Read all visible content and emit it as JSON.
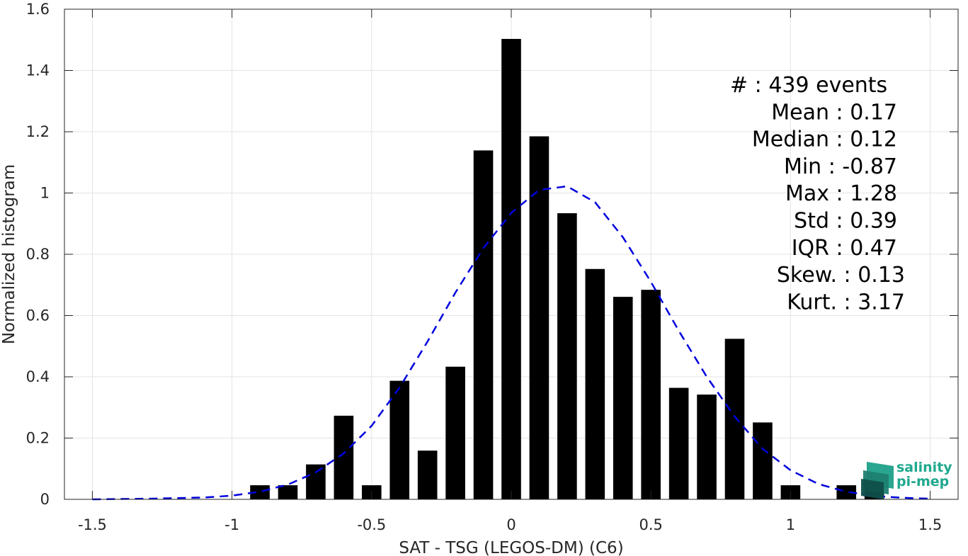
{
  "chart_data": {
    "type": "bar",
    "xlabel": "SAT - TSG (LEGOS-DM) (C6)",
    "ylabel": "Normalized histogram",
    "xlim": [
      -1.6,
      1.6
    ],
    "ylim": [
      0,
      1.6
    ],
    "xticks": [
      -1.5,
      -1,
      -0.5,
      0,
      0.5,
      1,
      1.5
    ],
    "xtick_labels": [
      "-1.5",
      "-1",
      "-0.5",
      "0",
      "0.5",
      "1",
      "1.5"
    ],
    "yticks": [
      0,
      0.2,
      0.4,
      0.6,
      0.8,
      1,
      1.2,
      1.4,
      1.6
    ],
    "ytick_labels": [
      "0",
      "0.2",
      "0.4",
      "0.6",
      "0.8",
      "1",
      "1.2",
      "1.4",
      "1.6"
    ],
    "grid": true,
    "bar_width": 0.07,
    "bar_color": "#000000",
    "bars": [
      {
        "x": -0.9,
        "y": 0.046
      },
      {
        "x": -0.8,
        "y": 0.046
      },
      {
        "x": -0.7,
        "y": 0.114
      },
      {
        "x": -0.6,
        "y": 0.273
      },
      {
        "x": -0.5,
        "y": 0.046
      },
      {
        "x": -0.4,
        "y": 0.387
      },
      {
        "x": -0.3,
        "y": 0.159
      },
      {
        "x": -0.2,
        "y": 0.433
      },
      {
        "x": -0.1,
        "y": 1.139
      },
      {
        "x": 0.0,
        "y": 1.503
      },
      {
        "x": 0.1,
        "y": 1.185
      },
      {
        "x": 0.2,
        "y": 0.934
      },
      {
        "x": 0.3,
        "y": 0.752
      },
      {
        "x": 0.4,
        "y": 0.661
      },
      {
        "x": 0.5,
        "y": 0.684
      },
      {
        "x": 0.6,
        "y": 0.364
      },
      {
        "x": 0.7,
        "y": 0.342
      },
      {
        "x": 0.8,
        "y": 0.524
      },
      {
        "x": 0.9,
        "y": 0.251
      },
      {
        "x": 1.0,
        "y": 0.046
      },
      {
        "x": 1.2,
        "y": 0.046
      },
      {
        "x": 1.3,
        "y": 0.068
      }
    ],
    "fit_curve": {
      "style": "dashed",
      "color": "#0000dd",
      "points": [
        [
          -1.5,
          0.0
        ],
        [
          -1.3,
          0.002
        ],
        [
          -1.1,
          0.006
        ],
        [
          -1.0,
          0.012
        ],
        [
          -0.9,
          0.025
        ],
        [
          -0.8,
          0.048
        ],
        [
          -0.7,
          0.088
        ],
        [
          -0.6,
          0.15
        ],
        [
          -0.5,
          0.24
        ],
        [
          -0.4,
          0.365
        ],
        [
          -0.3,
          0.515
        ],
        [
          -0.2,
          0.675
        ],
        [
          -0.1,
          0.82
        ],
        [
          0.0,
          0.935
        ],
        [
          0.1,
          1.01
        ],
        [
          0.2,
          1.022
        ],
        [
          0.3,
          0.97
        ],
        [
          0.4,
          0.855
        ],
        [
          0.5,
          0.71
        ],
        [
          0.6,
          0.55
        ],
        [
          0.7,
          0.4
        ],
        [
          0.8,
          0.27
        ],
        [
          0.9,
          0.165
        ],
        [
          1.0,
          0.095
        ],
        [
          1.1,
          0.05
        ],
        [
          1.2,
          0.025
        ],
        [
          1.3,
          0.011
        ],
        [
          1.4,
          0.005
        ],
        [
          1.5,
          0.002
        ]
      ]
    },
    "stats": [
      {
        "text": "#  : 439 events",
        "anchor": "start"
      },
      {
        "text": "Mean : 0.17",
        "anchor": "end"
      },
      {
        "text": "Median : 0.12",
        "anchor": "end"
      },
      {
        "text": "Min : -0.87",
        "anchor": "end"
      },
      {
        "text": "Max : 1.28",
        "anchor": "end"
      },
      {
        "text": "Std : 0.39",
        "anchor": "end"
      },
      {
        "text": "IQR : 0.47",
        "anchor": "end"
      },
      {
        "text": "Skew. : 0.13",
        "anchor": "end2"
      },
      {
        "text": "Kurt. : 3.17",
        "anchor": "end2"
      }
    ]
  },
  "logo": {
    "line1": "salinity",
    "line2": "pi-mep",
    "color": "#1fa88e"
  }
}
